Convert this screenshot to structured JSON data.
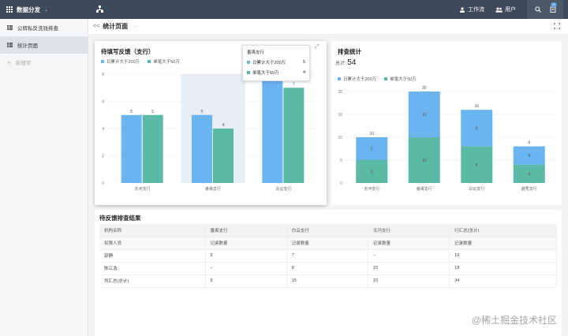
{
  "topbar": {
    "app_name": "数据分发",
    "workbench": "工作流",
    "users": "用户",
    "badge": "22"
  },
  "sidebar": {
    "items": [
      {
        "label": "公转私反洗钱排查"
      },
      {
        "label": "统计页面"
      },
      {
        "label": "新增项"
      }
    ]
  },
  "page": {
    "title": "统计页面",
    "back": "<<",
    "more": "···"
  },
  "chart_left": {
    "title": "待填写反馈（支行）",
    "legend": [
      "日累计大于200万",
      "单笔大于50万"
    ],
    "tooltip": {
      "title": "番禺支行",
      "rows": [
        {
          "label": "日累计大于200万",
          "value": "5"
        },
        {
          "label": "单笔大于50万",
          "value": "4"
        }
      ]
    }
  },
  "chart_right": {
    "title": "排查统计",
    "total_label": "总计:",
    "total_value": "54",
    "legend": [
      "日累计大于200万",
      "单笔大于50万"
    ]
  },
  "chart_data": [
    {
      "type": "bar",
      "title": "待填写反馈（支行）",
      "categories": [
        "天河支行",
        "番禺支行",
        "白云支行"
      ],
      "series": [
        {
          "name": "日累计大于200万",
          "values": [
            5,
            5,
            8
          ]
        },
        {
          "name": "单笔大于50万",
          "values": [
            5,
            4,
            7
          ]
        }
      ],
      "ylim": [
        0,
        8
      ],
      "yticks": [
        0,
        2,
        4,
        6,
        8
      ],
      "data_labels": [
        "5",
        "5",
        "5",
        "4",
        "",
        "7"
      ],
      "highlight_category": "番禺支行",
      "colors": [
        "#6ab4ef",
        "#5bbaa6"
      ]
    },
    {
      "type": "stacked-bar",
      "title": "排查统计",
      "categories": [
        "天河支行",
        "番禺支行",
        "白云支行",
        "越秀支行"
      ],
      "series": [
        {
          "name": "单笔大于50万",
          "values": [
            5,
            10,
            8,
            4
          ]
        },
        {
          "name": "日累计大于200万",
          "values": [
            5,
            10,
            8,
            4
          ]
        }
      ],
      "totals": [
        10,
        20,
        16,
        8
      ],
      "ylim": [
        0,
        20
      ],
      "yticks": [
        0,
        5,
        10,
        15,
        20
      ],
      "colors": [
        "#6ab4ef",
        "#5bbaa6"
      ]
    }
  ],
  "table": {
    "title": "待反馈排查结果",
    "header": [
      "机构名称",
      "番禺支行",
      "白云支行",
      "天河支行",
      "行汇总(总计)"
    ],
    "subheader": [
      "权限人员",
      "记录数量",
      "记录数量",
      "记录数量",
      "记录数量"
    ],
    "rows": [
      [
        "郭静",
        "9",
        "7",
        "--",
        "16"
      ],
      [
        "陈江浩",
        "--",
        "8",
        "10",
        "18"
      ],
      [
        "列汇总(总计)",
        "9",
        "15",
        "10",
        "34"
      ]
    ]
  },
  "watermark": "@稀土掘金技术社区"
}
